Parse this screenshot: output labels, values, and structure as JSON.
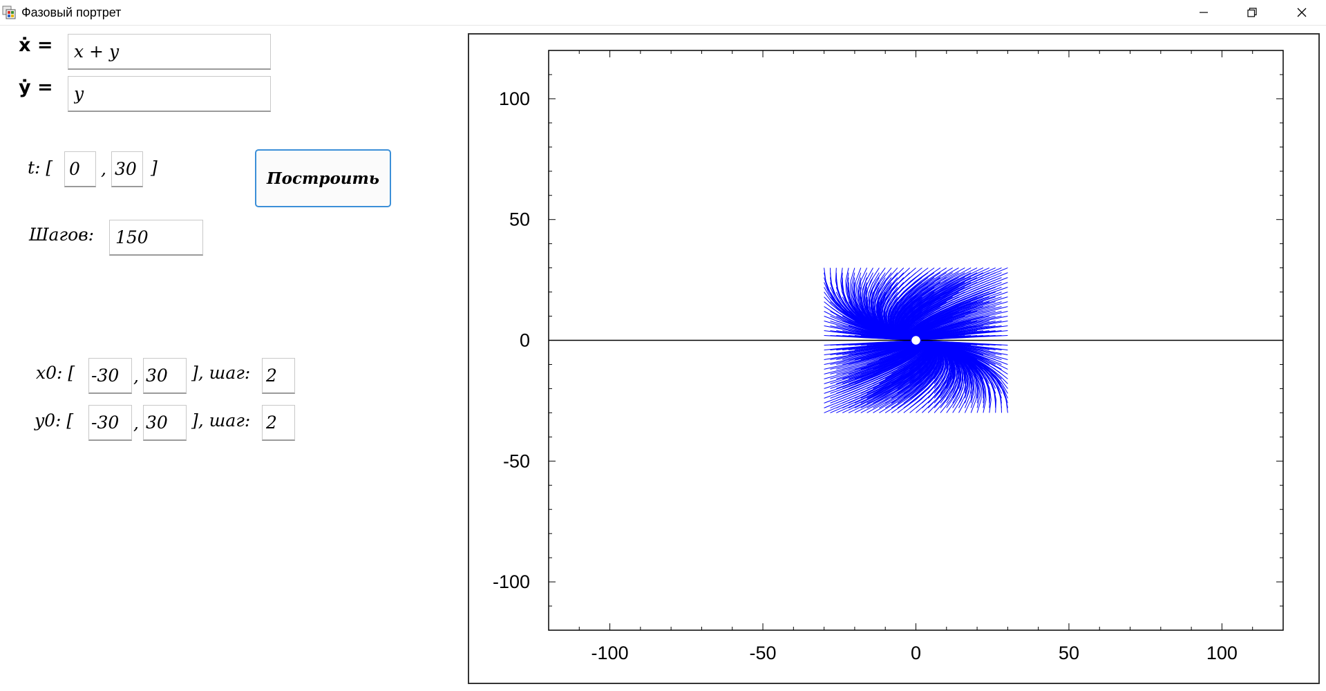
{
  "window": {
    "title": "Фазовый портрет",
    "controls": [
      "minimize",
      "restore",
      "close"
    ]
  },
  "equations": {
    "xdot_label": "ẋ =",
    "ydot_label": "ẏ =",
    "xdot_value": "x + y",
    "ydot_value": "y"
  },
  "time": {
    "label": "t: [",
    "start": "0",
    "sep": ",",
    "end": "30",
    "close": "]"
  },
  "plot_button": {
    "label": "Построить"
  },
  "steps": {
    "label": "Шагов:",
    "value": "150"
  },
  "x0": {
    "label": "x0: [",
    "min": "-30",
    "sep": ",",
    "max": "30",
    "step_label": "], шаг:",
    "step": "2"
  },
  "y0": {
    "label": "y0: [",
    "min": "-30",
    "sep": ",",
    "max": "30",
    "step_label": "], шаг:",
    "step": "2"
  },
  "colors": {
    "trajectory": "#0000ff",
    "button_border": "#3b8fd8",
    "axis": "#000000"
  },
  "chart_data": {
    "type": "line",
    "title": "",
    "xlabel": "",
    "ylabel": "",
    "xlim": [
      -120,
      120
    ],
    "ylim": [
      -120,
      120
    ],
    "x_ticks": [
      "-100",
      "-50",
      "0",
      "50",
      "100"
    ],
    "y_ticks": [
      "100",
      "50",
      "0",
      "-50",
      "-100"
    ],
    "system": {
      "dx": "x + y",
      "dy": "y"
    },
    "t_range": [
      0,
      30
    ],
    "steps": 150,
    "x0_grid": [
      -30,
      30,
      2
    ],
    "y0_grid": [
      -30,
      30,
      2
    ],
    "equilibrium": [
      0,
      0
    ],
    "grid": false,
    "legend": "none"
  }
}
